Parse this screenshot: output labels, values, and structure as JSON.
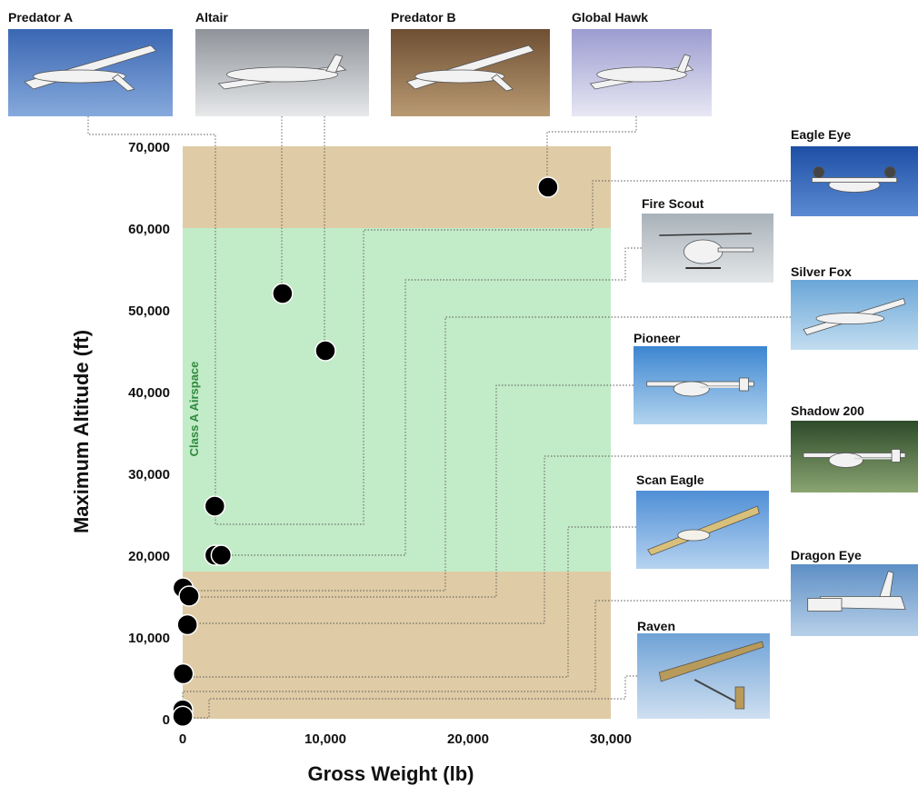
{
  "chart_data": {
    "type": "scatter",
    "title": "",
    "xlabel": "Gross Weight (lb)",
    "ylabel": "Maximum Altitude (ft)",
    "xlim": [
      0,
      30000
    ],
    "ylim": [
      0,
      70000
    ],
    "x_ticks": [
      "0",
      "10,000",
      "20,000",
      "30,000"
    ],
    "y_ticks": [
      "0",
      "10,000",
      "20,000",
      "30,000",
      "40,000",
      "50,000",
      "60,000",
      "70,000"
    ],
    "bands": [
      {
        "from": 0,
        "to": 18000,
        "color": "#dfcba5"
      },
      {
        "from": 18000,
        "to": 60000,
        "color": "#c2ebc8",
        "label": "Class A Airspace",
        "label_color": "#2f8a3d"
      },
      {
        "from": 60000,
        "to": 70000,
        "color": "#dfcba5"
      }
    ],
    "marker_color": "#000000",
    "points": [
      {
        "name": "Predator A",
        "x": 2250,
        "y": 26000
      },
      {
        "name": "Altair",
        "x": 7000,
        "y": 52000
      },
      {
        "name": "Predator B",
        "x": 10000,
        "y": 45000
      },
      {
        "name": "Global Hawk",
        "x": 25600,
        "y": 65000
      },
      {
        "name": "Eagle Eye",
        "x": 2250,
        "y": 20000
      },
      {
        "name": "Fire Scout",
        "x": 2700,
        "y": 20000
      },
      {
        "name": "Silver Fox",
        "x": 25,
        "y": 16000
      },
      {
        "name": "Pioneer",
        "x": 450,
        "y": 15000
      },
      {
        "name": "Shadow 200",
        "x": 330,
        "y": 11500
      },
      {
        "name": "Scan Eagle",
        "x": 40,
        "y": 5500
      },
      {
        "name": "Dragon Eye",
        "x": 5,
        "y": 1100
      },
      {
        "name": "Raven",
        "x": 4,
        "y": 300
      }
    ]
  },
  "aircraft_photos": [
    {
      "name": "Predator A",
      "icon": "predator-a-photo"
    },
    {
      "name": "Altair",
      "icon": "altair-photo"
    },
    {
      "name": "Predator B",
      "icon": "predator-b-photo"
    },
    {
      "name": "Global Hawk",
      "icon": "global-hawk-photo"
    },
    {
      "name": "Eagle Eye",
      "icon": "eagle-eye-photo"
    },
    {
      "name": "Fire Scout",
      "icon": "fire-scout-photo"
    },
    {
      "name": "Silver Fox",
      "icon": "silver-fox-photo"
    },
    {
      "name": "Pioneer",
      "icon": "pioneer-photo"
    },
    {
      "name": "Shadow 200",
      "icon": "shadow-200-photo"
    },
    {
      "name": "Scan Eagle",
      "icon": "scan-eagle-photo"
    },
    {
      "name": "Dragon Eye",
      "icon": "dragon-eye-photo"
    },
    {
      "name": "Raven",
      "icon": "raven-photo"
    }
  ]
}
